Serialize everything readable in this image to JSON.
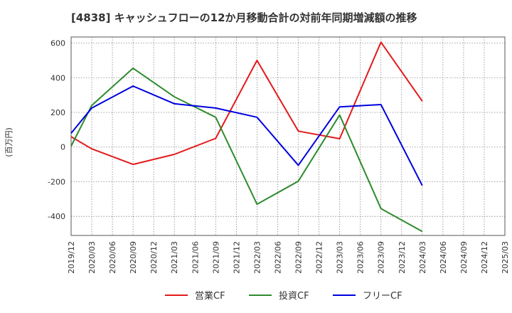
{
  "chart_data": {
    "type": "line",
    "title": "[4838]  キャッシュフローの12か月移動合計の対前年同期増減額の推移",
    "ylabel": "(百万円)",
    "xlabel": "",
    "ylim": [
      -510,
      635
    ],
    "yticks": [
      600,
      400,
      200,
      0,
      -200,
      -400
    ],
    "grid": true,
    "legend_position": "bottom-center",
    "categories": [
      "2019/12",
      "2020/03",
      "2020/06",
      "2020/09",
      "2020/12",
      "2021/03",
      "2021/06",
      "2021/09",
      "2021/12",
      "2022/03",
      "2022/06",
      "2022/09",
      "2022/12",
      "2023/03",
      "2023/06",
      "2023/09",
      "2023/12",
      "2024/03",
      "2024/06",
      "2024/09",
      "2024/12",
      "2025/03"
    ],
    "series": [
      {
        "name": "営業CF",
        "color": "#e31a1c",
        "values": [
          60,
          -10,
          null,
          -100,
          null,
          -42,
          null,
          50,
          null,
          500,
          null,
          92,
          null,
          48,
          null,
          605,
          null,
          265,
          null,
          null,
          null,
          null
        ]
      },
      {
        "name": "投資CF",
        "color": "#2e8b2e",
        "values": [
          5,
          240,
          null,
          455,
          null,
          290,
          null,
          172,
          null,
          -330,
          null,
          -197,
          null,
          185,
          null,
          -355,
          null,
          -487,
          null,
          null,
          null,
          null
        ]
      },
      {
        "name": "フリーCF",
        "color": "#0000e0",
        "values": [
          80,
          225,
          null,
          352,
          null,
          250,
          null,
          225,
          null,
          172,
          null,
          -105,
          null,
          232,
          null,
          245,
          null,
          -222,
          null,
          null,
          null,
          null
        ]
      }
    ]
  }
}
